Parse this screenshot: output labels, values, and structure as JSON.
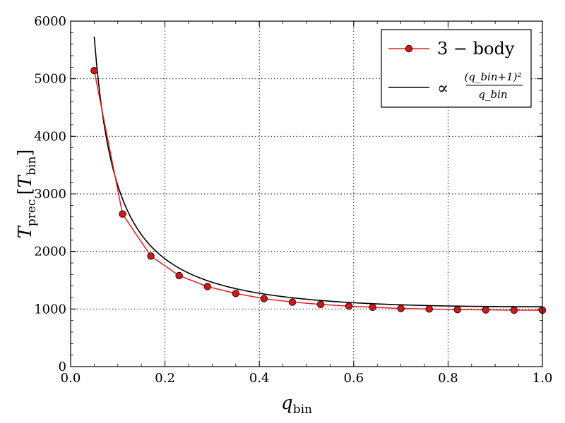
{
  "chart_data": {
    "type": "line",
    "xlabel": "q",
    "xlabel_sub": "bin",
    "ylabel": "T",
    "ylabel_sub": "prec",
    "ylabel_unit_open": "[",
    "ylabel_unit": "T",
    "ylabel_unit_sub": "bin",
    "ylabel_unit_close": "]",
    "xlim": [
      0.0,
      1.0
    ],
    "ylim": [
      0,
      6000
    ],
    "xticks": [
      "0.0",
      "0.2",
      "0.4",
      "0.6",
      "0.8",
      "1.0"
    ],
    "yticks": [
      "0",
      "1000",
      "2000",
      "3000",
      "4000",
      "5000",
      "6000"
    ],
    "grid": true,
    "legend_position": "top-right",
    "series": [
      {
        "name": "3 − body",
        "style": "line+markers",
        "color": "#e02020",
        "marker_color": "#d01818",
        "x": [
          0.05,
          0.11,
          0.17,
          0.23,
          0.29,
          0.35,
          0.41,
          0.47,
          0.53,
          0.59,
          0.64,
          0.7,
          0.76,
          0.82,
          0.88,
          0.94,
          1.0
        ],
        "y": [
          5140,
          2650,
          1920,
          1580,
          1390,
          1270,
          1180,
          1120,
          1080,
          1050,
          1030,
          1010,
          1000,
          990,
          985,
          980,
          980
        ]
      },
      {
        "name_prefix": "∝",
        "name_numerator": "(q_bin+1)²",
        "name_denominator": "q_bin",
        "style": "line",
        "color": "#000000",
        "formula": "proportional to (q+1)^2/q",
        "x_range": [
          0.05,
          1.0
        ]
      }
    ]
  }
}
